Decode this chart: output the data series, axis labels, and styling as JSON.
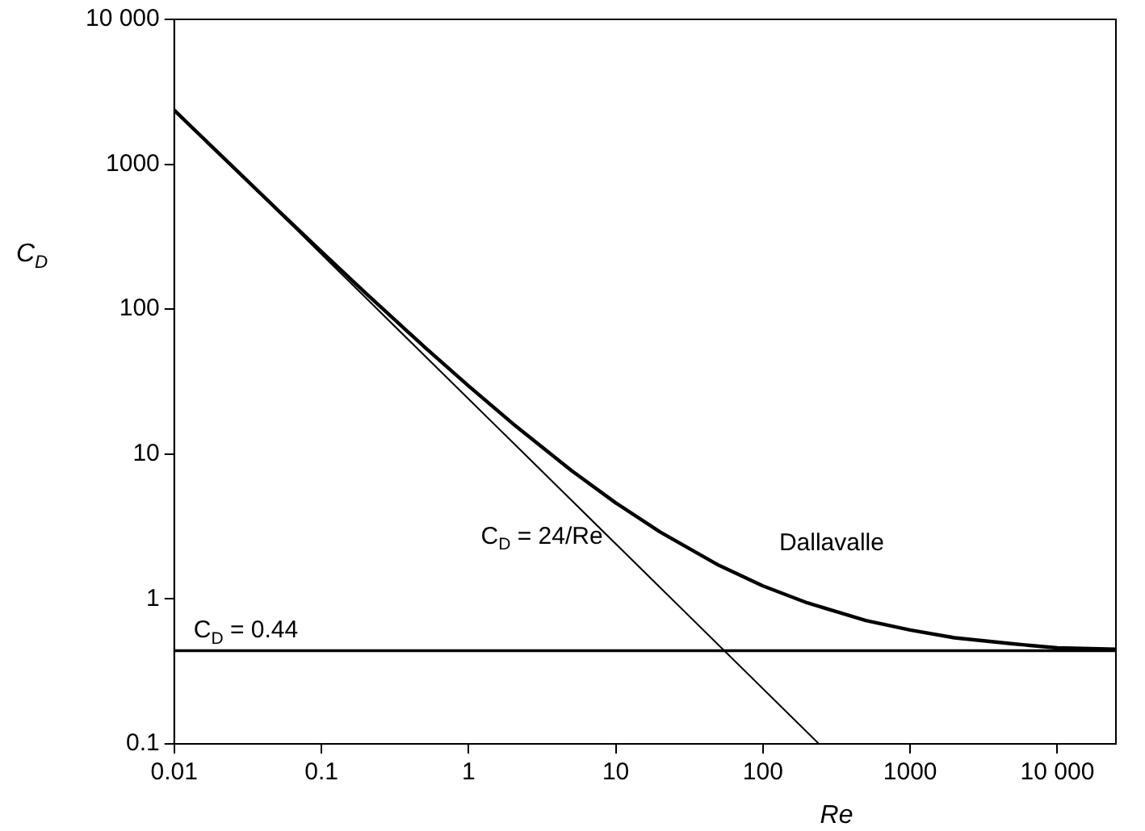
{
  "chart_data": {
    "type": "line",
    "xlabel": "Re",
    "ylabel": "C$_{D}$",
    "xlim": [
      0.01,
      25000
    ],
    "ylim": [
      0.1,
      10000
    ],
    "log": "xy",
    "grid": false,
    "legend": false,
    "marker": "none",
    "line_style": "solid",
    "xticks": [
      0.01,
      0.1,
      1,
      10,
      100,
      1000,
      {
        "value": 10000,
        "label": "10 000"
      }
    ],
    "yticks": [
      0.1,
      1,
      10,
      100,
      1000,
      {
        "value": 10000,
        "label": "10 000"
      }
    ],
    "series": [
      {
        "name": "Dallavalle",
        "color": "#000000",
        "x": [
          0.01,
          0.02,
          0.05,
          0.1,
          0.2,
          0.5,
          1,
          2,
          5,
          10,
          20,
          50,
          100,
          200,
          500,
          1000,
          2000,
          5000,
          10000,
          25000
        ],
        "values": [
          2360,
          1195,
          488,
          250,
          129,
          55,
          29.5,
          16.2,
          7.7,
          4.6,
          2.9,
          1.71,
          1.23,
          0.94,
          0.71,
          0.61,
          0.54,
          0.49,
          0.46,
          0.45
        ]
      },
      {
        "name": "C$_{D}$ = 24/Re",
        "color": "#000000",
        "x": [
          0.01,
          240
        ],
        "values": [
          2400,
          0.1
        ]
      }
    ],
    "ref_lines": [
      {
        "axis": "y",
        "value": 0.44,
        "label": "C$_{D}$ = 0.44",
        "color": "#000000"
      }
    ]
  }
}
